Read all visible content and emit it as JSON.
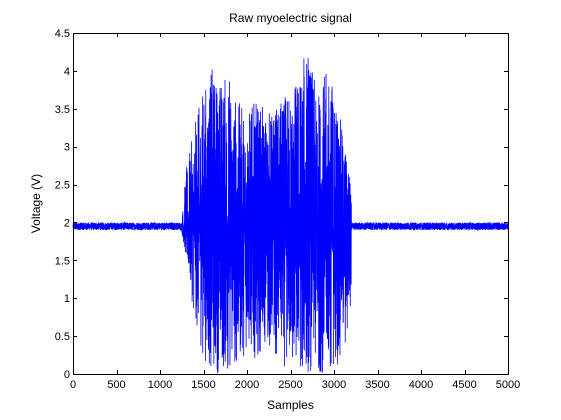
{
  "chart_data": {
    "type": "line",
    "title": "Raw myoelectric signal",
    "xlabel": "Samples",
    "ylabel": "Voltage (V)",
    "xlim": [
      0,
      5000
    ],
    "ylim": [
      0,
      4.5
    ],
    "xticks": [
      0,
      500,
      1000,
      1500,
      2000,
      2500,
      3000,
      3500,
      4000,
      4500,
      5000
    ],
    "yticks": [
      0,
      0.5,
      1,
      1.5,
      2,
      2.5,
      3,
      3.5,
      4,
      4.5
    ],
    "xtick_labels": [
      "0",
      "500",
      "1000",
      "1500",
      "2000",
      "2500",
      "3000",
      "3500",
      "4000",
      "4500",
      "5000"
    ],
    "ytick_labels": [
      "0",
      "0.5",
      "1",
      "1.5",
      "2",
      "2.5",
      "3",
      "3.5",
      "4",
      "4.5"
    ],
    "grid": false,
    "line_color": "#0000ff",
    "signal": {
      "baseline": 1.95,
      "baseline_noise_amplitude": 0.05,
      "burst_start": 1250,
      "burst_end": 3200,
      "num_samples": 5000,
      "envelope_points": [
        [
          0,
          1.88,
          2.03
        ],
        [
          1250,
          1.88,
          2.03
        ],
        [
          1300,
          1.5,
          2.7
        ],
        [
          1400,
          0.7,
          3.3
        ],
        [
          1500,
          0.2,
          3.8
        ],
        [
          1600,
          0.0,
          4.05
        ],
        [
          1700,
          0.0,
          3.95
        ],
        [
          1800,
          0.0,
          4.0
        ],
        [
          1900,
          0.1,
          3.6
        ],
        [
          2000,
          0.3,
          3.5
        ],
        [
          2100,
          0.2,
          3.6
        ],
        [
          2200,
          0.35,
          3.5
        ],
        [
          2300,
          0.3,
          3.5
        ],
        [
          2400,
          0.1,
          3.6
        ],
        [
          2500,
          0.05,
          3.8
        ],
        [
          2600,
          0.0,
          4.0
        ],
        [
          2700,
          0.0,
          4.4
        ],
        [
          2800,
          0.0,
          3.7
        ],
        [
          2900,
          0.0,
          4.0
        ],
        [
          3000,
          0.05,
          3.9
        ],
        [
          3100,
          0.2,
          3.2
        ],
        [
          3150,
          0.25,
          2.9
        ],
        [
          3200,
          1.1,
          2.55
        ],
        [
          3250,
          1.6,
          2.3
        ],
        [
          3300,
          1.85,
          2.05
        ],
        [
          3400,
          1.88,
          2.03
        ],
        [
          5000,
          1.88,
          2.03
        ]
      ]
    }
  }
}
